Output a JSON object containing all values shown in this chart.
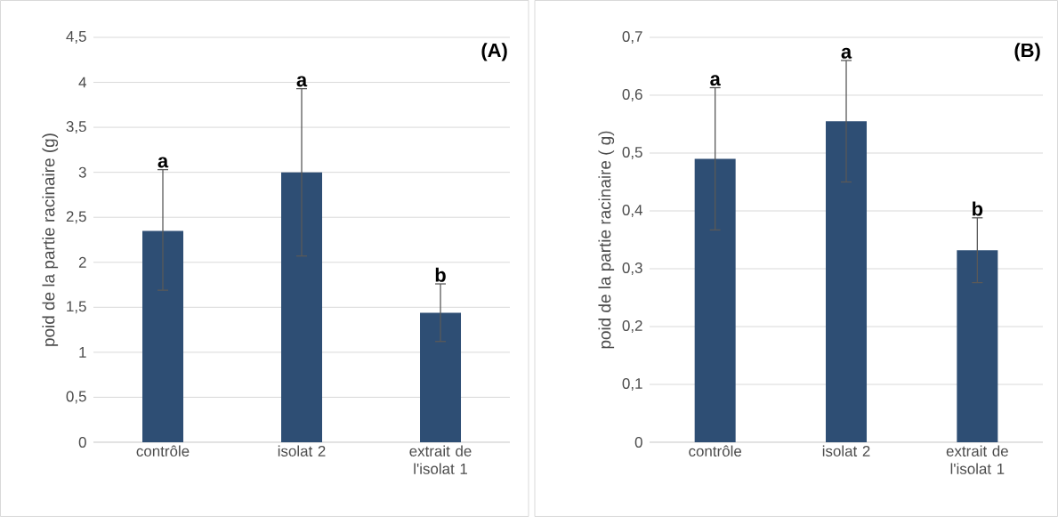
{
  "chart_data": [
    {
      "type": "bar",
      "ylabel": "poid de la partie racinaire (g)",
      "categories": [
        "contrôle",
        "isolat 2",
        "extrait de l'isolat 1"
      ],
      "values": [
        2.35,
        3.0,
        1.44
      ],
      "errors": [
        [
          1.69,
          3.03
        ],
        [
          2.07,
          3.93
        ],
        [
          1.12,
          1.76
        ]
      ],
      "color": "#2e4e74",
      "ylim": [
        0,
        4.5
      ],
      "yticks": [
        0,
        {
          "value": 0.5,
          "label": "0,5"
        },
        1,
        {
          "value": 1.5,
          "label": "1,5"
        },
        2,
        {
          "value": 2.5,
          "label": "2,5"
        },
        3,
        {
          "value": 3.5,
          "label": "3,5"
        },
        4,
        {
          "value": 4.5,
          "label": "4,5"
        }
      ],
      "grid": "y",
      "annotations": [
        "(A)",
        {
          "text": "a",
          "x": "contrôle",
          "y": 3.03
        },
        {
          "text": "a",
          "x": "isolat 2",
          "y": 3.93
        },
        {
          "text": "b",
          "x": "extrait de l'isolat 1",
          "y": 1.76
        }
      ]
    },
    {
      "type": "bar",
      "ylabel": "poid de la partie racinaire ( g)",
      "categories": [
        "contrôle",
        "isolat 2",
        "extrait de l'isolat 1"
      ],
      "values": [
        0.49,
        0.555,
        0.332
      ],
      "errors": [
        [
          0.367,
          0.613
        ],
        [
          0.45,
          0.66
        ],
        [
          0.276,
          0.388
        ]
      ],
      "color": "#2e4e74",
      "ylim": [
        0,
        0.7
      ],
      "yticks": [
        0,
        {
          "value": 0.1,
          "label": "0,1"
        },
        {
          "value": 0.2,
          "label": "0,2"
        },
        {
          "value": 0.3,
          "label": "0,3"
        },
        {
          "value": 0.4,
          "label": "0,4"
        },
        {
          "value": 0.5,
          "label": "0,5"
        },
        {
          "value": 0.6,
          "label": "0,6"
        },
        {
          "value": 0.7,
          "label": "0,7"
        }
      ],
      "grid": "y",
      "annotations": [
        "(B)",
        {
          "text": "a",
          "x": "contrôle",
          "y": 0.613
        },
        {
          "text": "a",
          "x": "isolat 2",
          "y": 0.66
        },
        {
          "text": "b",
          "x": "extrait de l'isolat 1",
          "y": 0.388
        }
      ]
    }
  ]
}
